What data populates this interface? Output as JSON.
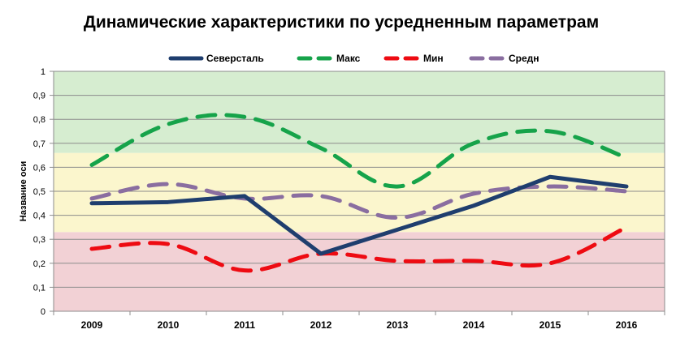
{
  "chart_data": {
    "type": "line",
    "title": "Динамические характеристики по усредненным параметрам",
    "xlabel": "",
    "ylabel": "Название оси",
    "categories": [
      "2009",
      "2010",
      "2011",
      "2012",
      "2013",
      "2014",
      "2015",
      "2016"
    ],
    "ylim": [
      0,
      1
    ],
    "yticks": [
      "0",
      "0,1",
      "0,2",
      "0,3",
      "0,4",
      "0,5",
      "0,6",
      "0,7",
      "0,8",
      "0,9",
      "1"
    ],
    "bands": [
      {
        "from": 0,
        "to": 0.33,
        "color": "#f2d1d5"
      },
      {
        "from": 0.33,
        "to": 0.66,
        "color": "#fbf6cd"
      },
      {
        "from": 0.66,
        "to": 1.0,
        "color": "#d6edd0"
      }
    ],
    "legend_position": "top",
    "grid": true,
    "series": [
      {
        "name": "Северсталь",
        "color": "#1f3e6e",
        "dash": "solid",
        "values": [
          0.45,
          0.455,
          0.48,
          0.24,
          0.34,
          0.44,
          0.56,
          0.52
        ]
      },
      {
        "name": "Макс",
        "color": "#16a34a",
        "dash": "dashed",
        "values": [
          0.61,
          0.78,
          0.81,
          0.68,
          0.52,
          0.7,
          0.75,
          0.64
        ]
      },
      {
        "name": "Мин",
        "color": "#ee0b12",
        "dash": "dashed",
        "values": [
          0.26,
          0.28,
          0.17,
          0.24,
          0.21,
          0.21,
          0.2,
          0.35
        ]
      },
      {
        "name": "Средн",
        "color": "#8a6ea0",
        "dash": "dashed",
        "values": [
          0.47,
          0.53,
          0.47,
          0.48,
          0.39,
          0.49,
          0.52,
          0.5
        ]
      }
    ]
  }
}
